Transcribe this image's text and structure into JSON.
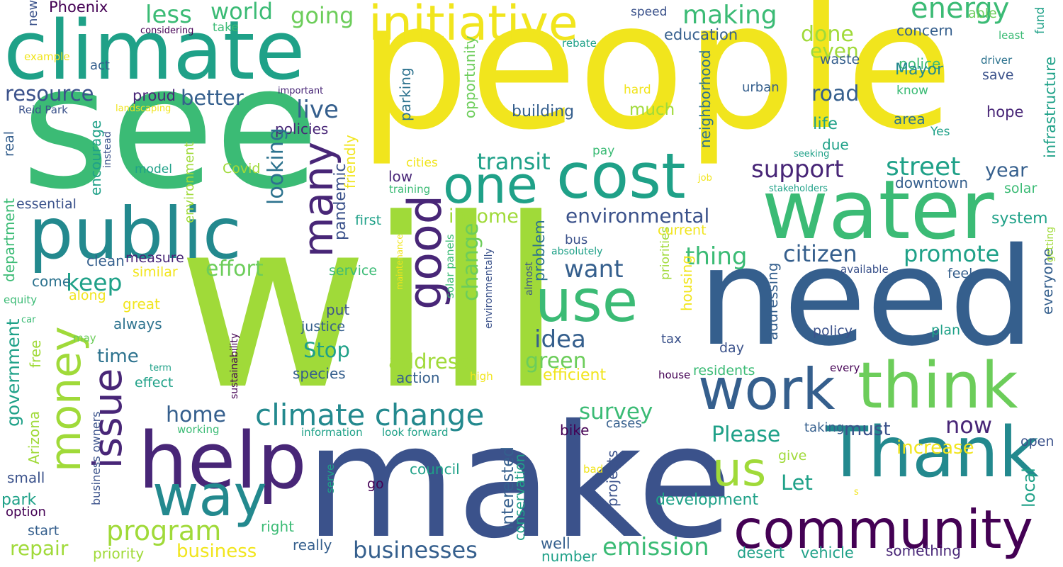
{
  "palette": {
    "yellow": "#f1e51d",
    "lime": "#a0da39",
    "lightgreen": "#6ccd5a",
    "green": "#3bbb75",
    "teal": "#1fa188",
    "blueteal": "#23898e",
    "steel": "#2c728e",
    "blue": "#355f8d",
    "indigo": "#3b528b",
    "deep": "#482677",
    "purple": "#440154"
  },
  "words": [
    {
      "text": "people",
      "color": "yellow"
    },
    {
      "text": "will",
      "color": "lime"
    },
    {
      "text": "make",
      "color": "indigo"
    },
    {
      "text": "need",
      "color": "blue"
    },
    {
      "text": "see",
      "color": "green"
    },
    {
      "text": "climate",
      "color": "teal"
    },
    {
      "text": "water",
      "color": "green"
    },
    {
      "text": "cost",
      "color": "teal"
    },
    {
      "text": "one",
      "color": "teal"
    },
    {
      "text": "public",
      "color": "blueteal"
    },
    {
      "text": "initiative",
      "color": "yellow"
    },
    {
      "text": "Thank",
      "color": "blueteal"
    },
    {
      "text": "work",
      "color": "blue"
    },
    {
      "text": "think",
      "color": "lightgreen"
    },
    {
      "text": "help",
      "color": "deep"
    },
    {
      "text": "community",
      "color": "purple"
    },
    {
      "text": "money",
      "color": "lime"
    },
    {
      "text": "good",
      "color": "deep"
    },
    {
      "text": "use",
      "color": "green"
    },
    {
      "text": "way",
      "color": "blueteal"
    },
    {
      "text": "many",
      "color": "deep"
    },
    {
      "text": "issue",
      "color": "deep"
    },
    {
      "text": "us",
      "color": "lime"
    },
    {
      "text": "climate change",
      "color": "blueteal"
    },
    {
      "text": "program",
      "color": "lime"
    },
    {
      "text": "businesses",
      "color": "blue"
    },
    {
      "text": "emission",
      "color": "green"
    },
    {
      "text": "energy",
      "color": "green"
    },
    {
      "text": "making",
      "color": "green"
    },
    {
      "text": "world",
      "color": "green"
    },
    {
      "text": "less",
      "color": "green"
    },
    {
      "text": "going",
      "color": "lightgreen"
    },
    {
      "text": "done",
      "color": "lime"
    },
    {
      "text": "even",
      "color": "lime"
    },
    {
      "text": "concern",
      "color": "blue"
    },
    {
      "text": "education",
      "color": "blue"
    },
    {
      "text": "police",
      "color": "green"
    },
    {
      "text": "Mayor",
      "color": "blueteal"
    },
    {
      "text": "resource",
      "color": "indigo"
    },
    {
      "text": "better",
      "color": "blue"
    },
    {
      "text": "proud",
      "color": "deep"
    },
    {
      "text": "live",
      "color": "blue"
    },
    {
      "text": "road",
      "color": "blue"
    },
    {
      "text": "building",
      "color": "blue"
    },
    {
      "text": "much",
      "color": "lime"
    },
    {
      "text": "hard",
      "color": "yellow"
    },
    {
      "text": "urban",
      "color": "blue"
    },
    {
      "text": "know",
      "color": "green"
    },
    {
      "text": "hope",
      "color": "deep"
    },
    {
      "text": "area",
      "color": "steel"
    },
    {
      "text": "life",
      "color": "teal"
    },
    {
      "text": "due",
      "color": "teal"
    },
    {
      "text": "Yes",
      "color": "teal"
    },
    {
      "text": "policies",
      "color": "deep"
    },
    {
      "text": "transit",
      "color": "teal"
    },
    {
      "text": "support",
      "color": "deep"
    },
    {
      "text": "street",
      "color": "teal"
    },
    {
      "text": "year",
      "color": "blue"
    },
    {
      "text": "downtown",
      "color": "blue"
    },
    {
      "text": "solar",
      "color": "green"
    },
    {
      "text": "income",
      "color": "lime"
    },
    {
      "text": "environmental",
      "color": "indigo"
    },
    {
      "text": "system",
      "color": "teal"
    },
    {
      "text": "thing",
      "color": "green"
    },
    {
      "text": "citizen",
      "color": "blue"
    },
    {
      "text": "promote",
      "color": "teal"
    },
    {
      "text": "effort",
      "color": "lightgreen"
    },
    {
      "text": "want",
      "color": "blue"
    },
    {
      "text": "keep",
      "color": "teal"
    },
    {
      "text": "come",
      "color": "steel"
    },
    {
      "text": "clean",
      "color": "blue"
    },
    {
      "text": "measure",
      "color": "deep"
    },
    {
      "text": "similar",
      "color": "yellow"
    },
    {
      "text": "idea",
      "color": "blue"
    },
    {
      "text": "change",
      "color": "lightgreen"
    },
    {
      "text": "Stop",
      "color": "teal"
    },
    {
      "text": "address",
      "color": "lime"
    },
    {
      "text": "green",
      "color": "lightgreen"
    },
    {
      "text": "efficient",
      "color": "yellow"
    },
    {
      "text": "action",
      "color": "blue"
    },
    {
      "text": "species",
      "color": "blue"
    },
    {
      "text": "justice",
      "color": "blue"
    },
    {
      "text": "put",
      "color": "indigo"
    },
    {
      "text": "always",
      "color": "steel"
    },
    {
      "text": "time",
      "color": "steel"
    },
    {
      "text": "great",
      "color": "yellow"
    },
    {
      "text": "along",
      "color": "yellow"
    },
    {
      "text": "effect",
      "color": "teal"
    },
    {
      "text": "home",
      "color": "blue"
    },
    {
      "text": "survey",
      "color": "green"
    },
    {
      "text": "Please",
      "color": "teal"
    },
    {
      "text": "must",
      "color": "indigo"
    },
    {
      "text": "now",
      "color": "deep"
    },
    {
      "text": "increase",
      "color": "yellow"
    },
    {
      "text": "Let",
      "color": "teal"
    },
    {
      "text": "development",
      "color": "teal"
    },
    {
      "text": "repair",
      "color": "lime"
    },
    {
      "text": "business",
      "color": "yellow"
    },
    {
      "text": "really",
      "color": "blue"
    },
    {
      "text": "well",
      "color": "blue"
    },
    {
      "text": "number",
      "color": "teal"
    },
    {
      "text": "council",
      "color": "teal"
    },
    {
      "text": "bike",
      "color": "purple"
    },
    {
      "text": "cases",
      "color": "blue"
    },
    {
      "text": "taking",
      "color": "blue"
    },
    {
      "text": "give",
      "color": "lime"
    },
    {
      "text": "open",
      "color": "indigo"
    },
    {
      "text": "local",
      "color": "teal"
    },
    {
      "text": "desert",
      "color": "teal"
    },
    {
      "text": "vehicle",
      "color": "teal"
    },
    {
      "text": "something",
      "color": "deep"
    },
    {
      "text": "right",
      "color": "green"
    },
    {
      "text": "priority",
      "color": "lime"
    },
    {
      "text": "start",
      "color": "blue"
    },
    {
      "text": "park",
      "color": "teal"
    },
    {
      "text": "option",
      "color": "purple"
    },
    {
      "text": "small",
      "color": "indigo"
    },
    {
      "text": "Phoenix",
      "color": "purple"
    },
    {
      "text": "act",
      "color": "blue"
    },
    {
      "text": "example",
      "color": "yellow"
    },
    {
      "text": "considering",
      "color": "purple"
    },
    {
      "text": "Reid Park",
      "color": "indigo"
    },
    {
      "text": "important",
      "color": "deep"
    },
    {
      "text": "landscaping",
      "color": "yellow"
    },
    {
      "text": "essential",
      "color": "indigo"
    },
    {
      "text": "model",
      "color": "teal"
    },
    {
      "text": "Covid",
      "color": "lime"
    },
    {
      "text": "low",
      "color": "deep"
    },
    {
      "text": "cities",
      "color": "yellow"
    },
    {
      "text": "training",
      "color": "green"
    },
    {
      "text": "first",
      "color": "teal"
    },
    {
      "text": "service",
      "color": "green"
    },
    {
      "text": "pay",
      "color": "green"
    },
    {
      "text": "bus",
      "color": "indigo"
    },
    {
      "text": "speed",
      "color": "indigo"
    },
    {
      "text": "take",
      "color": "green"
    },
    {
      "text": "able",
      "color": "lightgreen"
    },
    {
      "text": "least",
      "color": "green"
    },
    {
      "text": "rebate",
      "color": "teal"
    },
    {
      "text": "driver",
      "color": "steel"
    },
    {
      "text": "save",
      "color": "indigo"
    },
    {
      "text": "waste",
      "color": "blue"
    },
    {
      "text": "fund",
      "color": "teal"
    },
    {
      "text": "feel",
      "color": "blue"
    },
    {
      "text": "stakeholders",
      "color": "teal"
    },
    {
      "text": "job",
      "color": "yellow"
    },
    {
      "text": "seeking",
      "color": "teal"
    },
    {
      "text": "current",
      "color": "yellow"
    },
    {
      "text": "available",
      "color": "indigo"
    },
    {
      "text": "absolutely",
      "color": "teal"
    },
    {
      "text": "tax",
      "color": "indigo"
    },
    {
      "text": "day",
      "color": "indigo"
    },
    {
      "text": "policy",
      "color": "indigo"
    },
    {
      "text": "plan",
      "color": "teal"
    },
    {
      "text": "residents",
      "color": "green"
    },
    {
      "text": "house",
      "color": "purple"
    },
    {
      "text": "every",
      "color": "purple"
    },
    {
      "text": "high",
      "color": "yellow"
    },
    {
      "text": "information",
      "color": "teal"
    },
    {
      "text": "look forward",
      "color": "teal"
    },
    {
      "text": "working",
      "color": "green"
    },
    {
      "text": "go",
      "color": "purple"
    },
    {
      "text": "equity",
      "color": "green"
    },
    {
      "text": "car",
      "color": "green"
    },
    {
      "text": "may",
      "color": "lightgreen"
    },
    {
      "text": "term",
      "color": "teal"
    },
    {
      "text": "bad",
      "color": "yellow"
    },
    {
      "text": "s",
      "color": "yellow"
    },
    {
      "text": "free",
      "color": "lime"
    },
    {
      "text": "Arizona",
      "color": "lime"
    },
    {
      "text": "government",
      "color": "teal"
    },
    {
      "text": "department",
      "color": "green"
    },
    {
      "text": "new",
      "color": "indigo"
    },
    {
      "text": "real",
      "color": "blue"
    },
    {
      "text": "encourage",
      "color": "teal"
    },
    {
      "text": "instead",
      "color": "indigo"
    },
    {
      "text": "environment",
      "color": "lime"
    },
    {
      "text": "looking",
      "color": "steel"
    },
    {
      "text": "pandemic",
      "color": "indigo"
    },
    {
      "text": "friendly",
      "color": "yellow"
    },
    {
      "text": "parking",
      "color": "steel"
    },
    {
      "text": "opportunity",
      "color": "lightgreen"
    },
    {
      "text": "maintenance",
      "color": "yellow"
    },
    {
      "text": "solar panels",
      "color": "green"
    },
    {
      "text": "environmentally",
      "color": "indigo"
    },
    {
      "text": "problem",
      "color": "steel"
    },
    {
      "text": "almost",
      "color": "indigo"
    },
    {
      "text": "priorities",
      "color": "lime"
    },
    {
      "text": "housing",
      "color": "yellow"
    },
    {
      "text": "neighborhood",
      "color": "steel"
    },
    {
      "text": "addressing",
      "color": "blue"
    },
    {
      "text": "infrastructure",
      "color": "teal"
    },
    {
      "text": "everyone",
      "color": "blue"
    },
    {
      "text": "getting",
      "color": "lime"
    },
    {
      "text": "sustainability",
      "color": "purple"
    },
    {
      "text": "business owners",
      "color": "indigo"
    },
    {
      "text": "serve",
      "color": "teal"
    },
    {
      "text": "interested",
      "color": "blue"
    },
    {
      "text": "conservation",
      "color": "teal"
    },
    {
      "text": "projects",
      "color": "indigo"
    }
  ]
}
